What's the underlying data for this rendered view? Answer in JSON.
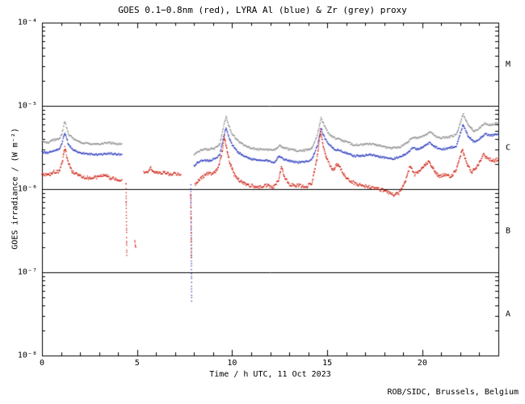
{
  "footer": {
    "credit": "ROB/SIDC, Brussels, Belgium"
  },
  "flare_classes": [
    {
      "label": "M",
      "log_mid": -4.5
    },
    {
      "label": "C",
      "log_mid": -5.5
    },
    {
      "label": "B",
      "log_mid": -6.5
    },
    {
      "label": "A",
      "log_mid": -7.5
    }
  ],
  "reference_lines_log": [
    -5,
    -6,
    -7
  ],
  "chart_data": {
    "type": "scatter",
    "title": "GOES 0.1−0.8nm (red), LYRA Al (blue) & Zr (grey) proxy",
    "xlabel": "Time / h UTC, 11 Oct 2023",
    "ylabel": "GOES irradiance / (W m⁻²)",
    "xlim": [
      0,
      24
    ],
    "ylog_lim": [
      -8,
      -4
    ],
    "x_ticks": [
      {
        "value": 0,
        "label": "0"
      },
      {
        "value": 5,
        "label": "5"
      },
      {
        "value": 10,
        "label": "10"
      },
      {
        "value": 15,
        "label": "15"
      },
      {
        "value": 20,
        "label": "20"
      }
    ],
    "x_minor_step": 1,
    "y_ticks": [
      {
        "log": -4,
        "label": "10⁻⁴"
      },
      {
        "log": -5,
        "label": "10⁻⁵"
      },
      {
        "log": -6,
        "label": "10⁻⁶"
      },
      {
        "log": -7,
        "label": "10⁻⁷"
      },
      {
        "log": -8,
        "label": "10⁻⁸"
      }
    ],
    "grid": false,
    "legend_position": "in-title",
    "series": [
      {
        "name": "GOES 0.1−0.8nm",
        "color": "#cc1100",
        "noise": 0.02,
        "segments": [
          [
            [
              0.0,
              1.5e-06
            ],
            [
              0.3,
              1.45e-06
            ],
            [
              0.6,
              1.6e-06
            ],
            [
              0.9,
              1.6e-06
            ],
            [
              1.05,
              2e-06
            ],
            [
              1.2,
              3.2e-06
            ],
            [
              1.35,
              2.2e-06
            ],
            [
              1.6,
              1.6e-06
            ],
            [
              2.0,
              1.45e-06
            ],
            [
              2.5,
              1.35e-06
            ],
            [
              3.0,
              1.4e-06
            ],
            [
              3.3,
              1.5e-06
            ],
            [
              3.6,
              1.35e-06
            ],
            [
              4.0,
              1.3e-06
            ],
            [
              4.2,
              1.3e-06
            ]
          ],
          [
            [
              4.42,
              1.2e-06
            ],
            [
              4.46,
              1.6e-07
            ]
          ],
          [
            [
              4.88,
              2.4e-07
            ],
            [
              4.93,
              2e-07
            ]
          ],
          [
            [
              5.35,
              1.6e-06
            ],
            [
              5.5,
              1.55e-06
            ],
            [
              5.7,
              1.8e-06
            ],
            [
              5.9,
              1.6e-06
            ],
            [
              6.1,
              1.55e-06
            ],
            [
              6.4,
              1.6e-06
            ],
            [
              6.7,
              1.5e-06
            ],
            [
              7.0,
              1.55e-06
            ],
            [
              7.3,
              1.5e-06
            ]
          ],
          [
            [
              7.82,
              9e-07
            ],
            [
              7.86,
              1.5e-07
            ]
          ],
          [
            [
              8.05,
              1.15e-06
            ],
            [
              8.3,
              1.3e-06
            ],
            [
              8.6,
              1.5e-06
            ],
            [
              8.9,
              1.55e-06
            ],
            [
              9.1,
              1.6e-06
            ],
            [
              9.3,
              1.9e-06
            ],
            [
              9.45,
              2.6e-06
            ],
            [
              9.6,
              4.3e-06
            ],
            [
              9.75,
              2.8e-06
            ],
            [
              9.9,
              2e-06
            ],
            [
              10.1,
              1.5e-06
            ],
            [
              10.4,
              1.25e-06
            ],
            [
              10.7,
              1.15e-06
            ],
            [
              11.0,
              1.1e-06
            ],
            [
              11.4,
              1.05e-06
            ],
            [
              11.8,
              1.1e-06
            ],
            [
              12.2,
              1.05e-06
            ],
            [
              12.45,
              1.3e-06
            ],
            [
              12.6,
              1.9e-06
            ],
            [
              12.75,
              1.4e-06
            ],
            [
              13.0,
              1.15e-06
            ],
            [
              13.3,
              1.1e-06
            ],
            [
              13.6,
              1.1e-06
            ],
            [
              13.9,
              1.05e-06
            ],
            [
              14.2,
              1.2e-06
            ],
            [
              14.45,
              2.2e-06
            ],
            [
              14.65,
              5.2e-06
            ],
            [
              14.8,
              3.2e-06
            ],
            [
              15.0,
              2.2e-06
            ],
            [
              15.3,
              1.7e-06
            ],
            [
              15.55,
              2e-06
            ],
            [
              15.8,
              1.6e-06
            ],
            [
              16.1,
              1.3e-06
            ],
            [
              16.5,
              1.15e-06
            ],
            [
              16.9,
              1.1e-06
            ],
            [
              17.3,
              1.05e-06
            ],
            [
              17.7,
              1e-06
            ],
            [
              18.1,
              9.5e-07
            ],
            [
              18.5,
              8.5e-07
            ],
            [
              18.8,
              9e-07
            ],
            [
              19.1,
              1.2e-06
            ],
            [
              19.35,
              1.9e-06
            ],
            [
              19.6,
              1.5e-06
            ],
            [
              19.85,
              1.6e-06
            ],
            [
              20.1,
              1.9e-06
            ],
            [
              20.35,
              2.2e-06
            ],
            [
              20.6,
              1.7e-06
            ],
            [
              20.9,
              1.4e-06
            ],
            [
              21.2,
              1.5e-06
            ],
            [
              21.5,
              1.4e-06
            ],
            [
              21.8,
              1.7e-06
            ],
            [
              22.1,
              3e-06
            ],
            [
              22.35,
              2e-06
            ],
            [
              22.6,
              1.6e-06
            ],
            [
              22.9,
              1.9e-06
            ],
            [
              23.2,
              2.6e-06
            ],
            [
              23.5,
              2.3e-06
            ],
            [
              23.8,
              2.2e-06
            ],
            [
              24.0,
              2.3e-06
            ]
          ]
        ]
      },
      {
        "name": "LYRA Al",
        "color": "#2233bb",
        "noise": 0.012,
        "segments": [
          [
            [
              0.0,
              2.8e-06
            ],
            [
              0.3,
              2.7e-06
            ],
            [
              0.6,
              2.9e-06
            ],
            [
              0.9,
              3e-06
            ],
            [
              1.05,
              3.5e-06
            ],
            [
              1.2,
              4.8e-06
            ],
            [
              1.4,
              3.4e-06
            ],
            [
              1.7,
              2.9e-06
            ],
            [
              2.1,
              2.7e-06
            ],
            [
              2.6,
              2.6e-06
            ],
            [
              3.1,
              2.6e-06
            ],
            [
              3.5,
              2.7e-06
            ],
            [
              4.0,
              2.6e-06
            ],
            [
              4.2,
              2.6e-06
            ]
          ],
          [
            [
              7.83,
              1.1e-06
            ],
            [
              7.87,
              4.5e-08
            ]
          ],
          [
            [
              8.0,
              1.9e-06
            ],
            [
              8.2,
              2.1e-06
            ],
            [
              8.5,
              2.2e-06
            ],
            [
              8.8,
              2.2e-06
            ],
            [
              9.1,
              2.3e-06
            ],
            [
              9.35,
              2.6e-06
            ],
            [
              9.55,
              4.2e-06
            ],
            [
              9.68,
              5.5e-06
            ],
            [
              9.8,
              4.4e-06
            ],
            [
              10.0,
              3.4e-06
            ],
            [
              10.3,
              2.8e-06
            ],
            [
              10.6,
              2.5e-06
            ],
            [
              11.0,
              2.3e-06
            ],
            [
              11.4,
              2.2e-06
            ],
            [
              11.8,
              2.2e-06
            ],
            [
              12.2,
              2.1e-06
            ],
            [
              12.5,
              2.5e-06
            ],
            [
              12.7,
              2.3e-06
            ],
            [
              13.0,
              2.2e-06
            ],
            [
              13.4,
              2.1e-06
            ],
            [
              13.8,
              2.1e-06
            ],
            [
              14.2,
              2.3e-06
            ],
            [
              14.5,
              3.4e-06
            ],
            [
              14.68,
              5.3e-06
            ],
            [
              14.85,
              4.2e-06
            ],
            [
              15.1,
              3.4e-06
            ],
            [
              15.4,
              3e-06
            ],
            [
              15.7,
              2.9e-06
            ],
            [
              16.0,
              2.7e-06
            ],
            [
              16.4,
              2.5e-06
            ],
            [
              16.8,
              2.5e-06
            ],
            [
              17.2,
              2.6e-06
            ],
            [
              17.6,
              2.5e-06
            ],
            [
              18.0,
              2.4e-06
            ],
            [
              18.4,
              2.3e-06
            ],
            [
              18.8,
              2.4e-06
            ],
            [
              19.2,
              2.7e-06
            ],
            [
              19.5,
              3.1e-06
            ],
            [
              19.8,
              3e-06
            ],
            [
              20.1,
              3.3e-06
            ],
            [
              20.4,
              3.6e-06
            ],
            [
              20.7,
              3.2e-06
            ],
            [
              21.0,
              3e-06
            ],
            [
              21.4,
              3.1e-06
            ],
            [
              21.8,
              3.3e-06
            ],
            [
              22.15,
              6e-06
            ],
            [
              22.4,
              4.4e-06
            ],
            [
              22.7,
              3.7e-06
            ],
            [
              23.0,
              4e-06
            ],
            [
              23.3,
              4.6e-06
            ],
            [
              23.6,
              4.4e-06
            ],
            [
              24.0,
              4.6e-06
            ]
          ]
        ]
      },
      {
        "name": "LYRA Zr",
        "color": "#8a8a8a",
        "noise": 0.012,
        "segments": [
          [
            [
              0.0,
              3.8e-06
            ],
            [
              0.3,
              3.6e-06
            ],
            [
              0.6,
              3.9e-06
            ],
            [
              0.9,
              4e-06
            ],
            [
              1.05,
              4.7e-06
            ],
            [
              1.2,
              6.5e-06
            ],
            [
              1.4,
              4.6e-06
            ],
            [
              1.7,
              3.9e-06
            ],
            [
              2.1,
              3.6e-06
            ],
            [
              2.6,
              3.5e-06
            ],
            [
              3.1,
              3.5e-06
            ],
            [
              3.5,
              3.6e-06
            ],
            [
              4.0,
              3.5e-06
            ],
            [
              4.2,
              3.5e-06
            ]
          ],
          [
            [
              8.0,
              2.6e-06
            ],
            [
              8.2,
              2.8e-06
            ],
            [
              8.5,
              3e-06
            ],
            [
              8.8,
              3e-06
            ],
            [
              9.1,
              3.1e-06
            ],
            [
              9.35,
              3.5e-06
            ],
            [
              9.55,
              5.6e-06
            ],
            [
              9.68,
              7.5e-06
            ],
            [
              9.8,
              6e-06
            ],
            [
              10.0,
              4.6e-06
            ],
            [
              10.3,
              3.8e-06
            ],
            [
              10.6,
              3.4e-06
            ],
            [
              11.0,
              3.1e-06
            ],
            [
              11.4,
              3e-06
            ],
            [
              11.8,
              3e-06
            ],
            [
              12.2,
              2.9e-06
            ],
            [
              12.5,
              3.4e-06
            ],
            [
              12.7,
              3.1e-06
            ],
            [
              13.0,
              3e-06
            ],
            [
              13.4,
              2.9e-06
            ],
            [
              13.8,
              2.9e-06
            ],
            [
              14.2,
              3.1e-06
            ],
            [
              14.5,
              4.6e-06
            ],
            [
              14.68,
              7.2e-06
            ],
            [
              14.85,
              5.7e-06
            ],
            [
              15.1,
              4.6e-06
            ],
            [
              15.4,
              4.1e-06
            ],
            [
              15.7,
              3.9e-06
            ],
            [
              16.0,
              3.7e-06
            ],
            [
              16.4,
              3.4e-06
            ],
            [
              16.8,
              3.4e-06
            ],
            [
              17.2,
              3.5e-06
            ],
            [
              17.6,
              3.4e-06
            ],
            [
              18.0,
              3.2e-06
            ],
            [
              18.4,
              3.1e-06
            ],
            [
              18.8,
              3.2e-06
            ],
            [
              19.2,
              3.6e-06
            ],
            [
              19.5,
              4.2e-06
            ],
            [
              19.8,
              4.1e-06
            ],
            [
              20.1,
              4.4e-06
            ],
            [
              20.4,
              4.9e-06
            ],
            [
              20.7,
              4.3e-06
            ],
            [
              21.0,
              4.1e-06
            ],
            [
              21.4,
              4.2e-06
            ],
            [
              21.8,
              4.5e-06
            ],
            [
              22.15,
              8e-06
            ],
            [
              22.4,
              6e-06
            ],
            [
              22.7,
              5e-06
            ],
            [
              23.0,
              5.4e-06
            ],
            [
              23.3,
              6.2e-06
            ],
            [
              23.6,
              5.9e-06
            ],
            [
              24.0,
              6.2e-06
            ]
          ]
        ]
      }
    ]
  }
}
